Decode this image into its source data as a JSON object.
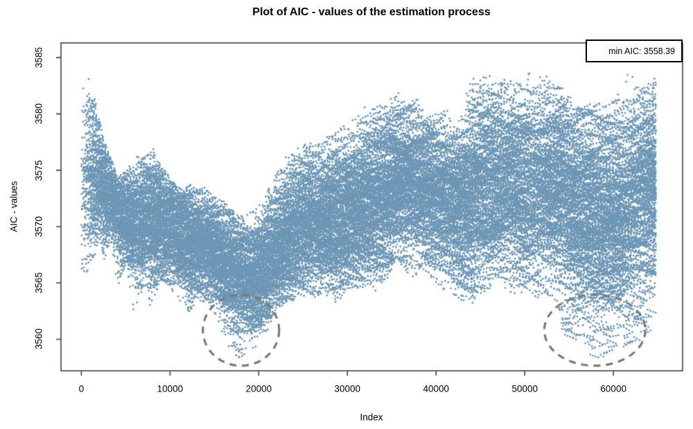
{
  "figure": {
    "legend": {
      "label": "min AIC: 3558.39"
    }
  },
  "chart_data": {
    "type": "scatter",
    "title": "Plot of AIC - values of the estimation process",
    "xlabel": "Index",
    "ylabel": "AIC - values",
    "x_ticks": [
      0,
      10000,
      20000,
      30000,
      40000,
      50000,
      60000
    ],
    "y_ticks": [
      3560,
      3565,
      3570,
      3575,
      3580,
      3585
    ],
    "xlim": [
      -2300,
      67800
    ],
    "ylim": [
      3557.2,
      3586.3
    ],
    "x_data_range": [
      0,
      64800
    ],
    "n_points": 65000,
    "min_aic": 3558.39,
    "min_aic_index_approx": 17800,
    "point_color": "#6d97b5",
    "ellipse_color": "#7a7a7a",
    "axis_color": "#404040",
    "background": "#ffffff",
    "legend_text": "min AIC: 3558.39",
    "envelope": {
      "x": [
        0,
        500,
        1000,
        2000,
        2600,
        3300,
        4100,
        5000,
        5900,
        6600,
        7400,
        7900,
        8800,
        9900,
        10800,
        11600,
        12300,
        13000,
        14000,
        15000,
        16000,
        17000,
        17800,
        18600,
        19300,
        20000,
        20800,
        21500,
        22500,
        23500,
        24500,
        25500,
        26500,
        27500,
        29000,
        30000,
        31500,
        33000,
        34200,
        35500,
        36500,
        38000,
        39000,
        40000,
        41000,
        42500,
        44000,
        45000,
        46500,
        48000,
        49500,
        50300,
        51500,
        53000,
        54500,
        56000,
        57500,
        59000,
        60500,
        62000,
        63000,
        64000,
        64800
      ],
      "top": [
        3582,
        3583.3,
        3583,
        3579.5,
        3577.5,
        3576,
        3574.2,
        3574.8,
        3576,
        3577.1,
        3577,
        3577.1,
        3575.5,
        3574.3,
        3573.4,
        3573,
        3574.7,
        3574,
        3573.3,
        3572.5,
        3572.2,
        3571.5,
        3570.8,
        3570.9,
        3571.2,
        3572,
        3573,
        3574,
        3575.8,
        3576.5,
        3577.2,
        3577.6,
        3577.3,
        3578,
        3579,
        3578.6,
        3580.5,
        3581,
        3580.8,
        3582.5,
        3581,
        3581.3,
        3580.5,
        3579.8,
        3580.3,
        3579.6,
        3583.2,
        3583.3,
        3583.4,
        3583,
        3583.5,
        3584.4,
        3583.6,
        3583,
        3582.2,
        3581.4,
        3580.8,
        3581.5,
        3582.5,
        3584,
        3583.4,
        3583.6,
        3584.6
      ],
      "bottom": [
        3565.5,
        3565.8,
        3566.2,
        3568.8,
        3567,
        3568.8,
        3564,
        3566.8,
        3561.7,
        3564,
        3565.2,
        3561.8,
        3565.4,
        3564.8,
        3563.5,
        3562.4,
        3561.9,
        3564,
        3562.8,
        3562,
        3561,
        3559.8,
        3558.7,
        3559.3,
        3560,
        3560.9,
        3561.4,
        3562,
        3563,
        3563.4,
        3563.8,
        3564,
        3563.7,
        3564,
        3563.1,
        3564.4,
        3564.8,
        3564,
        3565,
        3567.3,
        3566,
        3565.2,
        3565.8,
        3565,
        3564.4,
        3563.4,
        3563.2,
        3564.2,
        3564.8,
        3564.2,
        3563.7,
        3563.9,
        3563.4,
        3563.9,
        3562.2,
        3561.2,
        3560.6,
        3561,
        3561.5,
        3561.9,
        3562.4,
        3562.8,
        3563.6
      ]
    },
    "highlight_ellipses": [
      {
        "cx": 18000,
        "cy": 3560.8,
        "rx": 4300,
        "ry": 3.15
      },
      {
        "cx": 57900,
        "cy": 3560.8,
        "rx": 5700,
        "ry": 3.15
      }
    ],
    "sparse_low_regions": [
      {
        "x_min": 15800,
        "x_max": 21200,
        "v_min": 3558.4,
        "depth": 0.8,
        "count": 34
      },
      {
        "x_min": 53500,
        "x_max": 63900,
        "v_min": 3558.55,
        "depth": 2.3,
        "count": 190
      }
    ],
    "min_point": {
      "x": 17800,
      "v": 3558.39
    }
  }
}
